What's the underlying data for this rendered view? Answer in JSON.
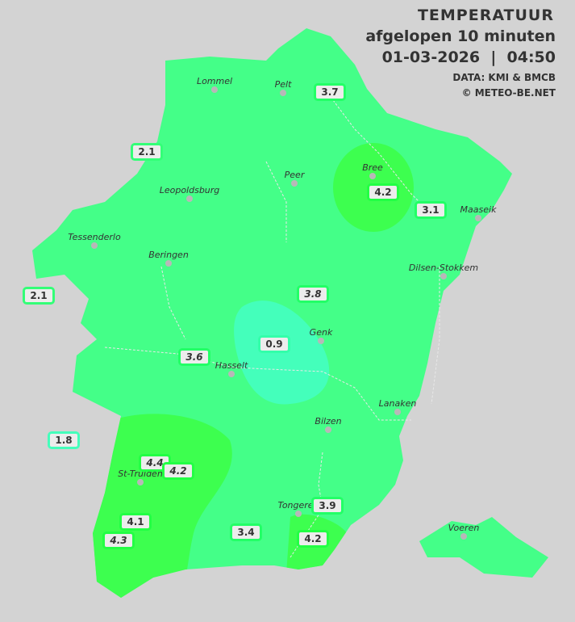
{
  "header": {
    "title": "TEMPERATUUR",
    "subtitle": "afgelopen 10 minuten",
    "datetime": "01-03-2026  |  04:50",
    "source": "DATA: KMI & BMCB",
    "copyright": "© METEO-BE.NET"
  },
  "colors": {
    "background": "#d3d3d3",
    "zone_3_4": "#44ff88",
    "zone_4_plus": "#3dff4f",
    "zone_0_2": "#44ffbb"
  },
  "cities": [
    {
      "name": "Lommel"
    },
    {
      "name": "Pelt"
    },
    {
      "name": "Peer"
    },
    {
      "name": "Bree"
    },
    {
      "name": "Maaseik"
    },
    {
      "name": "Leopoldsburg"
    },
    {
      "name": "Tessenderlo"
    },
    {
      "name": "Beringen"
    },
    {
      "name": "Dilsen-Stokkem"
    },
    {
      "name": "Genk"
    },
    {
      "name": "Hasselt"
    },
    {
      "name": "Lanaken"
    },
    {
      "name": "Bilzen"
    },
    {
      "name": "St-Truiden"
    },
    {
      "name": "Tongeren"
    },
    {
      "name": "Voeren"
    }
  ],
  "stations": [
    {
      "value": "3.7",
      "italic": false,
      "border": "#22ff66"
    },
    {
      "value": "2.1",
      "italic": false,
      "border": "#33ff77"
    },
    {
      "value": "4.2",
      "italic": false,
      "border": "#22ff44"
    },
    {
      "value": "3.1",
      "italic": false,
      "border": "#22ff66"
    },
    {
      "value": "2.1",
      "italic": false,
      "border": "#33ff77"
    },
    {
      "value": "3.8",
      "italic": true,
      "border": "#22ff66"
    },
    {
      "value": "0.9",
      "italic": false,
      "border": "#33ffaa"
    },
    {
      "value": "3.6",
      "italic": true,
      "border": "#22ff66"
    },
    {
      "value": "1.8",
      "italic": false,
      "border": "#44ffbb"
    },
    {
      "value": "4.4",
      "italic": true,
      "border": "#22ff44"
    },
    {
      "value": "4.2",
      "italic": true,
      "border": "#22ff44"
    },
    {
      "value": "3.9",
      "italic": false,
      "border": "#22ff66"
    },
    {
      "value": "4.1",
      "italic": false,
      "border": "#22ff44"
    },
    {
      "value": "4.3",
      "italic": true,
      "border": "#22ff44"
    },
    {
      "value": "3.4",
      "italic": false,
      "border": "#22ff66"
    },
    {
      "value": "4.2",
      "italic": false,
      "border": "#22ff44"
    }
  ]
}
